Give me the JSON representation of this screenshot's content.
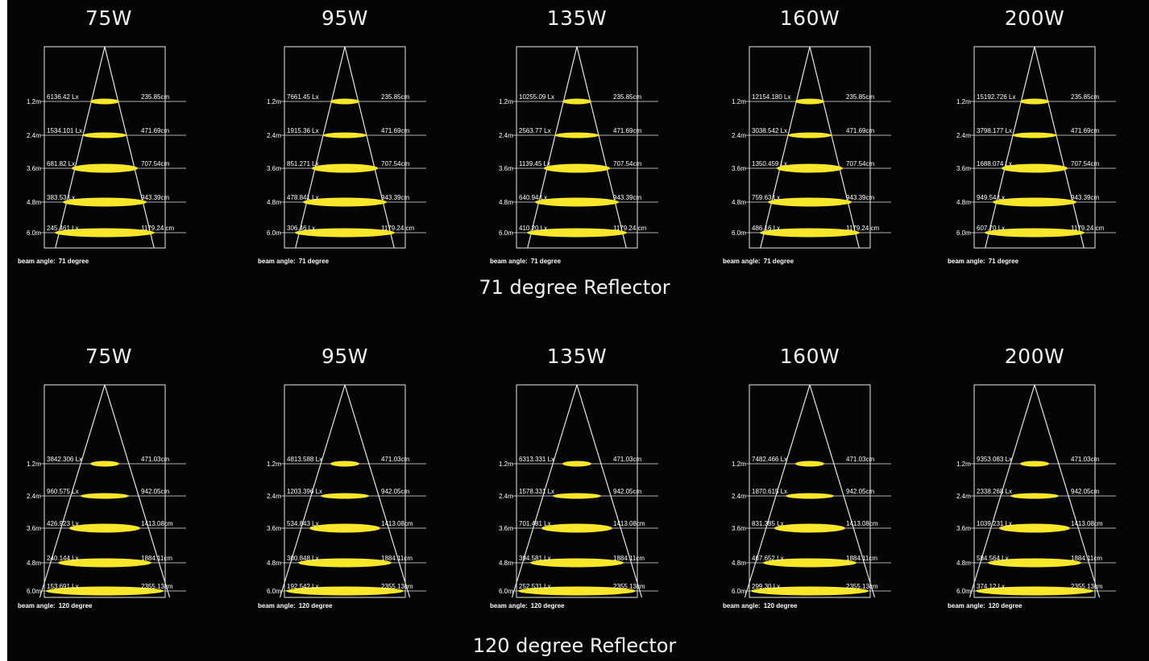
{
  "rows": [
    {
      "reflector_label": "71 degree Reflector",
      "beam_angle_label": "beam angle:",
      "beam_angle_value": "71 degree",
      "panels": [
        {
          "watt": "75W",
          "lux": [
            "6136.42 Lx",
            "1534.101 Lx",
            "681.82 Lx",
            "383.53 Lx",
            "245.461 Lx"
          ],
          "width": [
            "235.85cm",
            "471.69cm",
            "707.54cm",
            "943.39cm",
            "1179.24 cm"
          ]
        },
        {
          "watt": "95W",
          "lux": [
            "7661.45 Lx",
            "1915.36 Lx",
            "851.271 Lx",
            "478.841 Lx",
            "306.46 Lx"
          ],
          "width": [
            "235.85cm",
            "471.69cm",
            "707.54cm",
            "943.39cm",
            "1179.24 cm"
          ]
        },
        {
          "watt": "135W",
          "lux": [
            "10255.09 Lx",
            "2563.77 Lx",
            "1139.45 Lx",
            "640.94 Lx",
            "410.20 Lx"
          ],
          "width": [
            "235.85cm",
            "471.69cm",
            "707.54cm",
            "943.39cm",
            "1179.24 cm"
          ]
        },
        {
          "watt": "160W",
          "lux": [
            "12154.180 Lx",
            "3038.542 Lx",
            "1350.459 Lx",
            "759.63 Lx",
            "486.16 Lx"
          ],
          "width": [
            "235.85cm",
            "471.69cm",
            "707.54cm",
            "943.39cm",
            "1179.24 cm"
          ]
        },
        {
          "watt": "200W",
          "lux": [
            "15192.726 Lx",
            "3798.177 Lx",
            "1688.074 Lx",
            "949.54 Lx",
            "607.70 Lx"
          ],
          "width": [
            "235.85cm",
            "471.69cm",
            "707.54cm",
            "943.39cm",
            "1179.24 cm"
          ]
        }
      ]
    },
    {
      "reflector_label": "120 degree Reflector",
      "beam_angle_label": "beam angle:",
      "beam_angle_value": "120 degree",
      "panels": [
        {
          "watt": "75W",
          "lux": [
            "3842.306 Lx",
            "960.575 Lx",
            "426.923 Lx",
            "240.144 Lx",
            "153.691 Lx"
          ],
          "width": [
            "471.03cm",
            "942.05cm",
            "1413.08cm",
            "1884.11cm",
            "2355.13cm"
          ]
        },
        {
          "watt": "95W",
          "lux": [
            "4813.588 Lx",
            "1203.396 Lx",
            "534.843 Lx",
            "300.848 Lx",
            "192.542 Lx"
          ],
          "width": [
            "471.03cm",
            "942.05cm",
            "1413.08cm",
            "1884.11cm",
            "2355.13cm"
          ]
        },
        {
          "watt": "135W",
          "lux": [
            "6313.331 Lx",
            "1578.331 Lx",
            "701.481 Lx",
            "394.581 Lx",
            "252.531 Lx"
          ],
          "width": [
            "471.03cm",
            "942.05cm",
            "1413.08cm",
            "1884.11cm",
            "2355.13cm"
          ]
        },
        {
          "watt": "160W",
          "lux": [
            "7482.466 Lx",
            "1870.615 Lx",
            "831.385 Lx",
            "467.652 Lx",
            "299.30 Lx"
          ],
          "width": [
            "471.03cm",
            "942.05cm",
            "1413.08cm",
            "1884.11cm",
            "2355.13cm"
          ]
        },
        {
          "watt": "200W",
          "lux": [
            "9353.083 Lx",
            "2338.268 Lx",
            "1039.231 Lx",
            "584.564 Lx",
            "374.12 Lx"
          ],
          "width": [
            "471.03cm",
            "942.05cm",
            "1413.08cm",
            "1884.11cm",
            "2355.13cm"
          ]
        }
      ]
    }
  ],
  "heights": [
    "1.2m",
    "2.4m",
    "3.6m",
    "4.8m",
    "6.0m"
  ],
  "colors": {
    "spot": "#f8e62a",
    "line": "#e6e6e6",
    "background": "#050505"
  }
}
